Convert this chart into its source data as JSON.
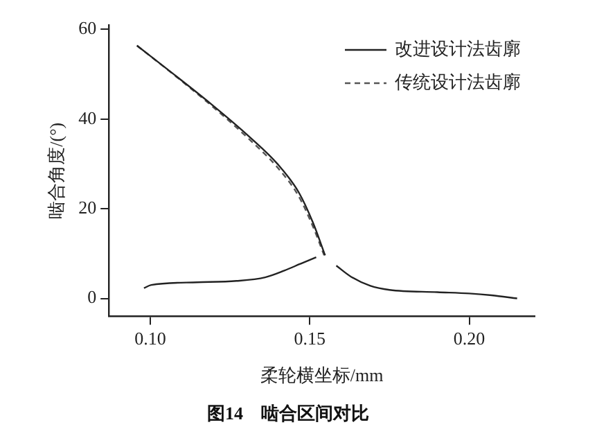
{
  "chart_data": {
    "type": "line",
    "title": "图14　啮合区间对比",
    "xlabel": "柔轮横坐标/mm",
    "ylabel": "啮合角度/(°)",
    "xlim": [
      0.087,
      0.2205
    ],
    "xticks": [
      {
        "value": 0.1,
        "label": "0.10"
      },
      {
        "value": 0.15,
        "label": "0.15"
      },
      {
        "value": 0.2,
        "label": "0.20"
      }
    ],
    "ylim": [
      -4,
      61
    ],
    "yticks": [
      0,
      20,
      40,
      60
    ],
    "grid": false,
    "legend": "top right",
    "marker": "none",
    "series": [
      {
        "name": "改进设计法齿廓",
        "color": "#222222",
        "line_style": "solid",
        "x": [
          0.0958,
          0.107,
          0.119,
          0.131,
          0.14,
          0.1465,
          0.151,
          0.1548
        ],
        "values": [
          56.4,
          50.2,
          43.4,
          36.1,
          29.9,
          23.7,
          16.9,
          9.6
        ]
      },
      {
        "name": "传统设计法齿廓",
        "color": "#555555",
        "line_style": "dashed",
        "x": [
          0.0958,
          0.107,
          0.119,
          0.131,
          0.14,
          0.1465,
          0.151,
          0.1545
        ],
        "values": [
          56.4,
          50.1,
          43.1,
          35.5,
          29.1,
          22.8,
          16.0,
          9.6
        ]
      },
      {
        "color": "#222222",
        "line_style": "solid",
        "x": [
          0.098,
          0.1003,
          0.1147,
          0.127,
          0.136,
          0.142,
          0.147,
          0.152
        ],
        "values": [
          2.3,
          3.0,
          3.6,
          3.9,
          4.7,
          6.2,
          7.7,
          9.2
        ]
      },
      {
        "color": "#222222",
        "line_style": "solid",
        "x": [
          0.1583,
          0.163,
          0.169,
          0.175,
          0.19,
          0.2,
          0.207,
          0.215
        ],
        "values": [
          7.3,
          4.8,
          2.8,
          1.9,
          1.4,
          1.1,
          0.7,
          0.0
        ]
      }
    ]
  }
}
